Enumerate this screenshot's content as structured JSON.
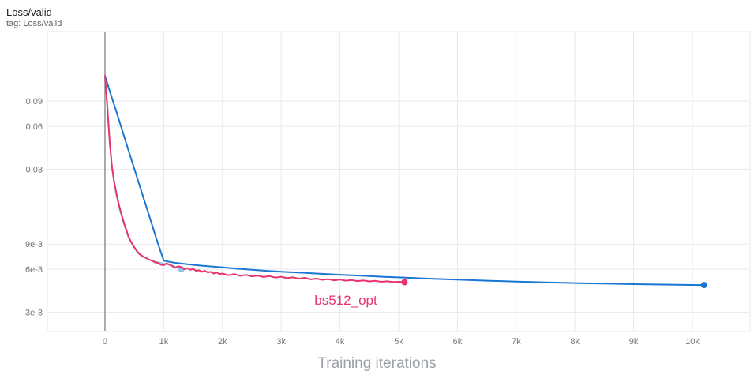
{
  "header": {
    "title": "Loss/valid",
    "tag": "tag: Loss/valid"
  },
  "chart_data": {
    "type": "line",
    "title": "Loss/valid",
    "subtitle": "tag: Loss/valid",
    "xlabel": "Training iterations",
    "ylabel": "",
    "legend_position": "none",
    "grid": true,
    "grid_color": "#e6eaf0",
    "zero_line_color": "#909090",
    "tick_label_color": "#71757a",
    "x_axis": {
      "scale": "linear",
      "range": [
        -981,
        10981
      ],
      "ticks": [
        {
          "v": 0,
          "label": "0"
        },
        {
          "v": 1000,
          "label": "1k"
        },
        {
          "v": 2000,
          "label": "2k"
        },
        {
          "v": 3000,
          "label": "3k"
        },
        {
          "v": 4000,
          "label": "4k"
        },
        {
          "v": 5000,
          "label": "5k"
        },
        {
          "v": 6000,
          "label": "6k"
        },
        {
          "v": 7000,
          "label": "7k"
        },
        {
          "v": 8000,
          "label": "8k"
        },
        {
          "v": 9000,
          "label": "9k"
        },
        {
          "v": 10000,
          "label": "10k"
        }
      ]
    },
    "y_axis": {
      "scale": "log",
      "range": [
        0.0022,
        0.276
      ],
      "ticks": [
        {
          "v": 0.09,
          "label": "0.09"
        },
        {
          "v": 0.06,
          "label": "0.06"
        },
        {
          "v": 0.03,
          "label": "0.03"
        },
        {
          "v": 0.009,
          "label": "9e-3"
        },
        {
          "v": 0.006,
          "label": "6e-3"
        },
        {
          "v": 0.003,
          "label": "3e-3"
        }
      ]
    },
    "series": [
      {
        "id": "run-blue",
        "label": "",
        "color": "#1976d2",
        "width": 2,
        "endpoint_dot": true,
        "points": [
          [
            0,
            0.135
          ],
          [
            100,
            0.1
          ],
          [
            200,
            0.0745
          ],
          [
            300,
            0.0551
          ],
          [
            400,
            0.0408
          ],
          [
            500,
            0.0302
          ],
          [
            600,
            0.0224
          ],
          [
            700,
            0.0166
          ],
          [
            800,
            0.0123
          ],
          [
            900,
            0.0091
          ],
          [
            1000,
            0.0069
          ],
          [
            1100,
            0.00675
          ],
          [
            1200,
            0.00665
          ],
          [
            1400,
            0.0065
          ],
          [
            1600,
            0.00638
          ],
          [
            1800,
            0.00628
          ],
          [
            2000,
            0.00618
          ],
          [
            2250,
            0.00605
          ],
          [
            2500,
            0.00595
          ],
          [
            2750,
            0.00585
          ],
          [
            3000,
            0.00577
          ],
          [
            3250,
            0.0057
          ],
          [
            3500,
            0.00563
          ],
          [
            3750,
            0.00556
          ],
          [
            4000,
            0.00549
          ],
          [
            4250,
            0.00543
          ],
          [
            4500,
            0.00537
          ],
          [
            4750,
            0.00531
          ],
          [
            5000,
            0.00526
          ],
          [
            5500,
            0.00516
          ],
          [
            6000,
            0.00507
          ],
          [
            6500,
            0.00499
          ],
          [
            7000,
            0.00492
          ],
          [
            7500,
            0.00486
          ],
          [
            8000,
            0.0048
          ],
          [
            8500,
            0.00476
          ],
          [
            9000,
            0.00472
          ],
          [
            9500,
            0.00469
          ],
          [
            10000,
            0.00466
          ],
          [
            10200,
            0.00465
          ]
        ]
      },
      {
        "id": "run-lightblue",
        "label": "",
        "color": "#8ec4e8",
        "width": 1.7,
        "endpoint_dot": true,
        "points": [
          [
            0,
            0.135
          ],
          [
            40,
            0.08
          ],
          [
            80,
            0.0455
          ],
          [
            120,
            0.03
          ],
          [
            160,
            0.0235
          ],
          [
            200,
            0.0192
          ],
          [
            240,
            0.0163
          ],
          [
            280,
            0.0142
          ],
          [
            320,
            0.0125
          ],
          [
            360,
            0.0111
          ],
          [
            400,
            0.01
          ],
          [
            440,
            0.0093
          ],
          [
            480,
            0.0087
          ],
          [
            520,
            0.0082
          ],
          [
            560,
            0.0078
          ],
          [
            600,
            0.00755
          ],
          [
            650,
            0.0073
          ],
          [
            700,
            0.00715
          ],
          [
            750,
            0.007
          ],
          [
            800,
            0.0069
          ],
          [
            850,
            0.0068
          ],
          [
            900,
            0.00672
          ],
          [
            950,
            0.00664
          ],
          [
            1000,
            0.00656
          ],
          [
            1050,
            0.0065
          ],
          [
            1100,
            0.00644
          ],
          [
            1150,
            0.00638
          ],
          [
            1200,
            0.00625
          ],
          [
            1250,
            0.00612
          ],
          [
            1300,
            0.006
          ]
        ]
      },
      {
        "id": "run-pink",
        "label": "bs512_opt",
        "label_anchor": [
          4100,
          0.0034
        ],
        "label_font_size": 17,
        "color": "#e8336d",
        "width": 2,
        "endpoint_dot": true,
        "points": [
          [
            0,
            0.135
          ],
          [
            40,
            0.082
          ],
          [
            80,
            0.047
          ],
          [
            120,
            0.031
          ],
          [
            160,
            0.024
          ],
          [
            200,
            0.0198
          ],
          [
            240,
            0.0168
          ],
          [
            280,
            0.0146
          ],
          [
            320,
            0.0128
          ],
          [
            360,
            0.0114
          ],
          [
            400,
            0.0102
          ],
          [
            440,
            0.0094
          ],
          [
            480,
            0.0088
          ],
          [
            520,
            0.0083
          ],
          [
            560,
            0.0079
          ],
          [
            600,
            0.0076
          ],
          [
            650,
            0.00735
          ],
          [
            700,
            0.0072
          ],
          [
            750,
            0.007
          ],
          [
            800,
            0.0069
          ],
          [
            850,
            0.0067
          ],
          [
            900,
            0.00665
          ],
          [
            950,
            0.00645
          ],
          [
            1000,
            0.0064
          ],
          [
            1050,
            0.0066
          ],
          [
            1100,
            0.00645
          ],
          [
            1150,
            0.0063
          ],
          [
            1200,
            0.00615
          ],
          [
            1250,
            0.0063
          ],
          [
            1300,
            0.0062
          ],
          [
            1350,
            0.006
          ],
          [
            1400,
            0.0061
          ],
          [
            1450,
            0.00595
          ],
          [
            1500,
            0.00605
          ],
          [
            1550,
            0.00585
          ],
          [
            1600,
            0.0059
          ],
          [
            1650,
            0.00575
          ],
          [
            1700,
            0.00585
          ],
          [
            1750,
            0.0057
          ],
          [
            1800,
            0.00575
          ],
          [
            1850,
            0.0056
          ],
          [
            1900,
            0.0057
          ],
          [
            1950,
            0.00555
          ],
          [
            2000,
            0.0056
          ],
          [
            2100,
            0.00545
          ],
          [
            2200,
            0.00555
          ],
          [
            2300,
            0.0054
          ],
          [
            2400,
            0.00548
          ],
          [
            2500,
            0.00535
          ],
          [
            2600,
            0.00542
          ],
          [
            2700,
            0.0053
          ],
          [
            2800,
            0.00537
          ],
          [
            2900,
            0.00525
          ],
          [
            3000,
            0.00532
          ],
          [
            3100,
            0.0052
          ],
          [
            3200,
            0.00527
          ],
          [
            3300,
            0.00515
          ],
          [
            3400,
            0.00522
          ],
          [
            3500,
            0.0051
          ],
          [
            3600,
            0.00516
          ],
          [
            3700,
            0.00506
          ],
          [
            3800,
            0.00512
          ],
          [
            3900,
            0.00502
          ],
          [
            4000,
            0.00508
          ],
          [
            4100,
            0.00499
          ],
          [
            4200,
            0.00504
          ],
          [
            4300,
            0.00496
          ],
          [
            4400,
            0.00501
          ],
          [
            4500,
            0.00493
          ],
          [
            4600,
            0.00498
          ],
          [
            4700,
            0.0049
          ],
          [
            4800,
            0.00494
          ],
          [
            4900,
            0.00488
          ],
          [
            5000,
            0.0049
          ],
          [
            5100,
            0.00487
          ]
        ]
      }
    ]
  }
}
